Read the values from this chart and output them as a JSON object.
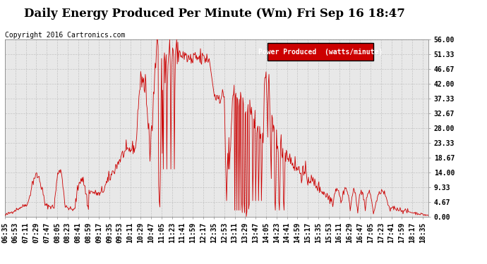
{
  "title": "Daily Energy Produced Per Minute (Wm) Fri Sep 16 18:47",
  "copyright": "Copyright 2016 Cartronics.com",
  "legend_label": "Power Produced  (watts/minute)",
  "legend_bg": "#cc0000",
  "legend_fg": "#ffffff",
  "line_color": "#cc0000",
  "bg_color": "#ffffff",
  "plot_bg_color": "#e8e8e8",
  "grid_color": "#bbbbbb",
  "yticks": [
    0.0,
    4.67,
    9.33,
    14.0,
    18.67,
    23.33,
    28.0,
    32.67,
    37.33,
    42.0,
    46.67,
    51.33,
    56.0
  ],
  "ymax": 56.0,
  "ymin": 0.0,
  "title_fontsize": 12,
  "axis_fontsize": 7,
  "copyright_fontsize": 7
}
